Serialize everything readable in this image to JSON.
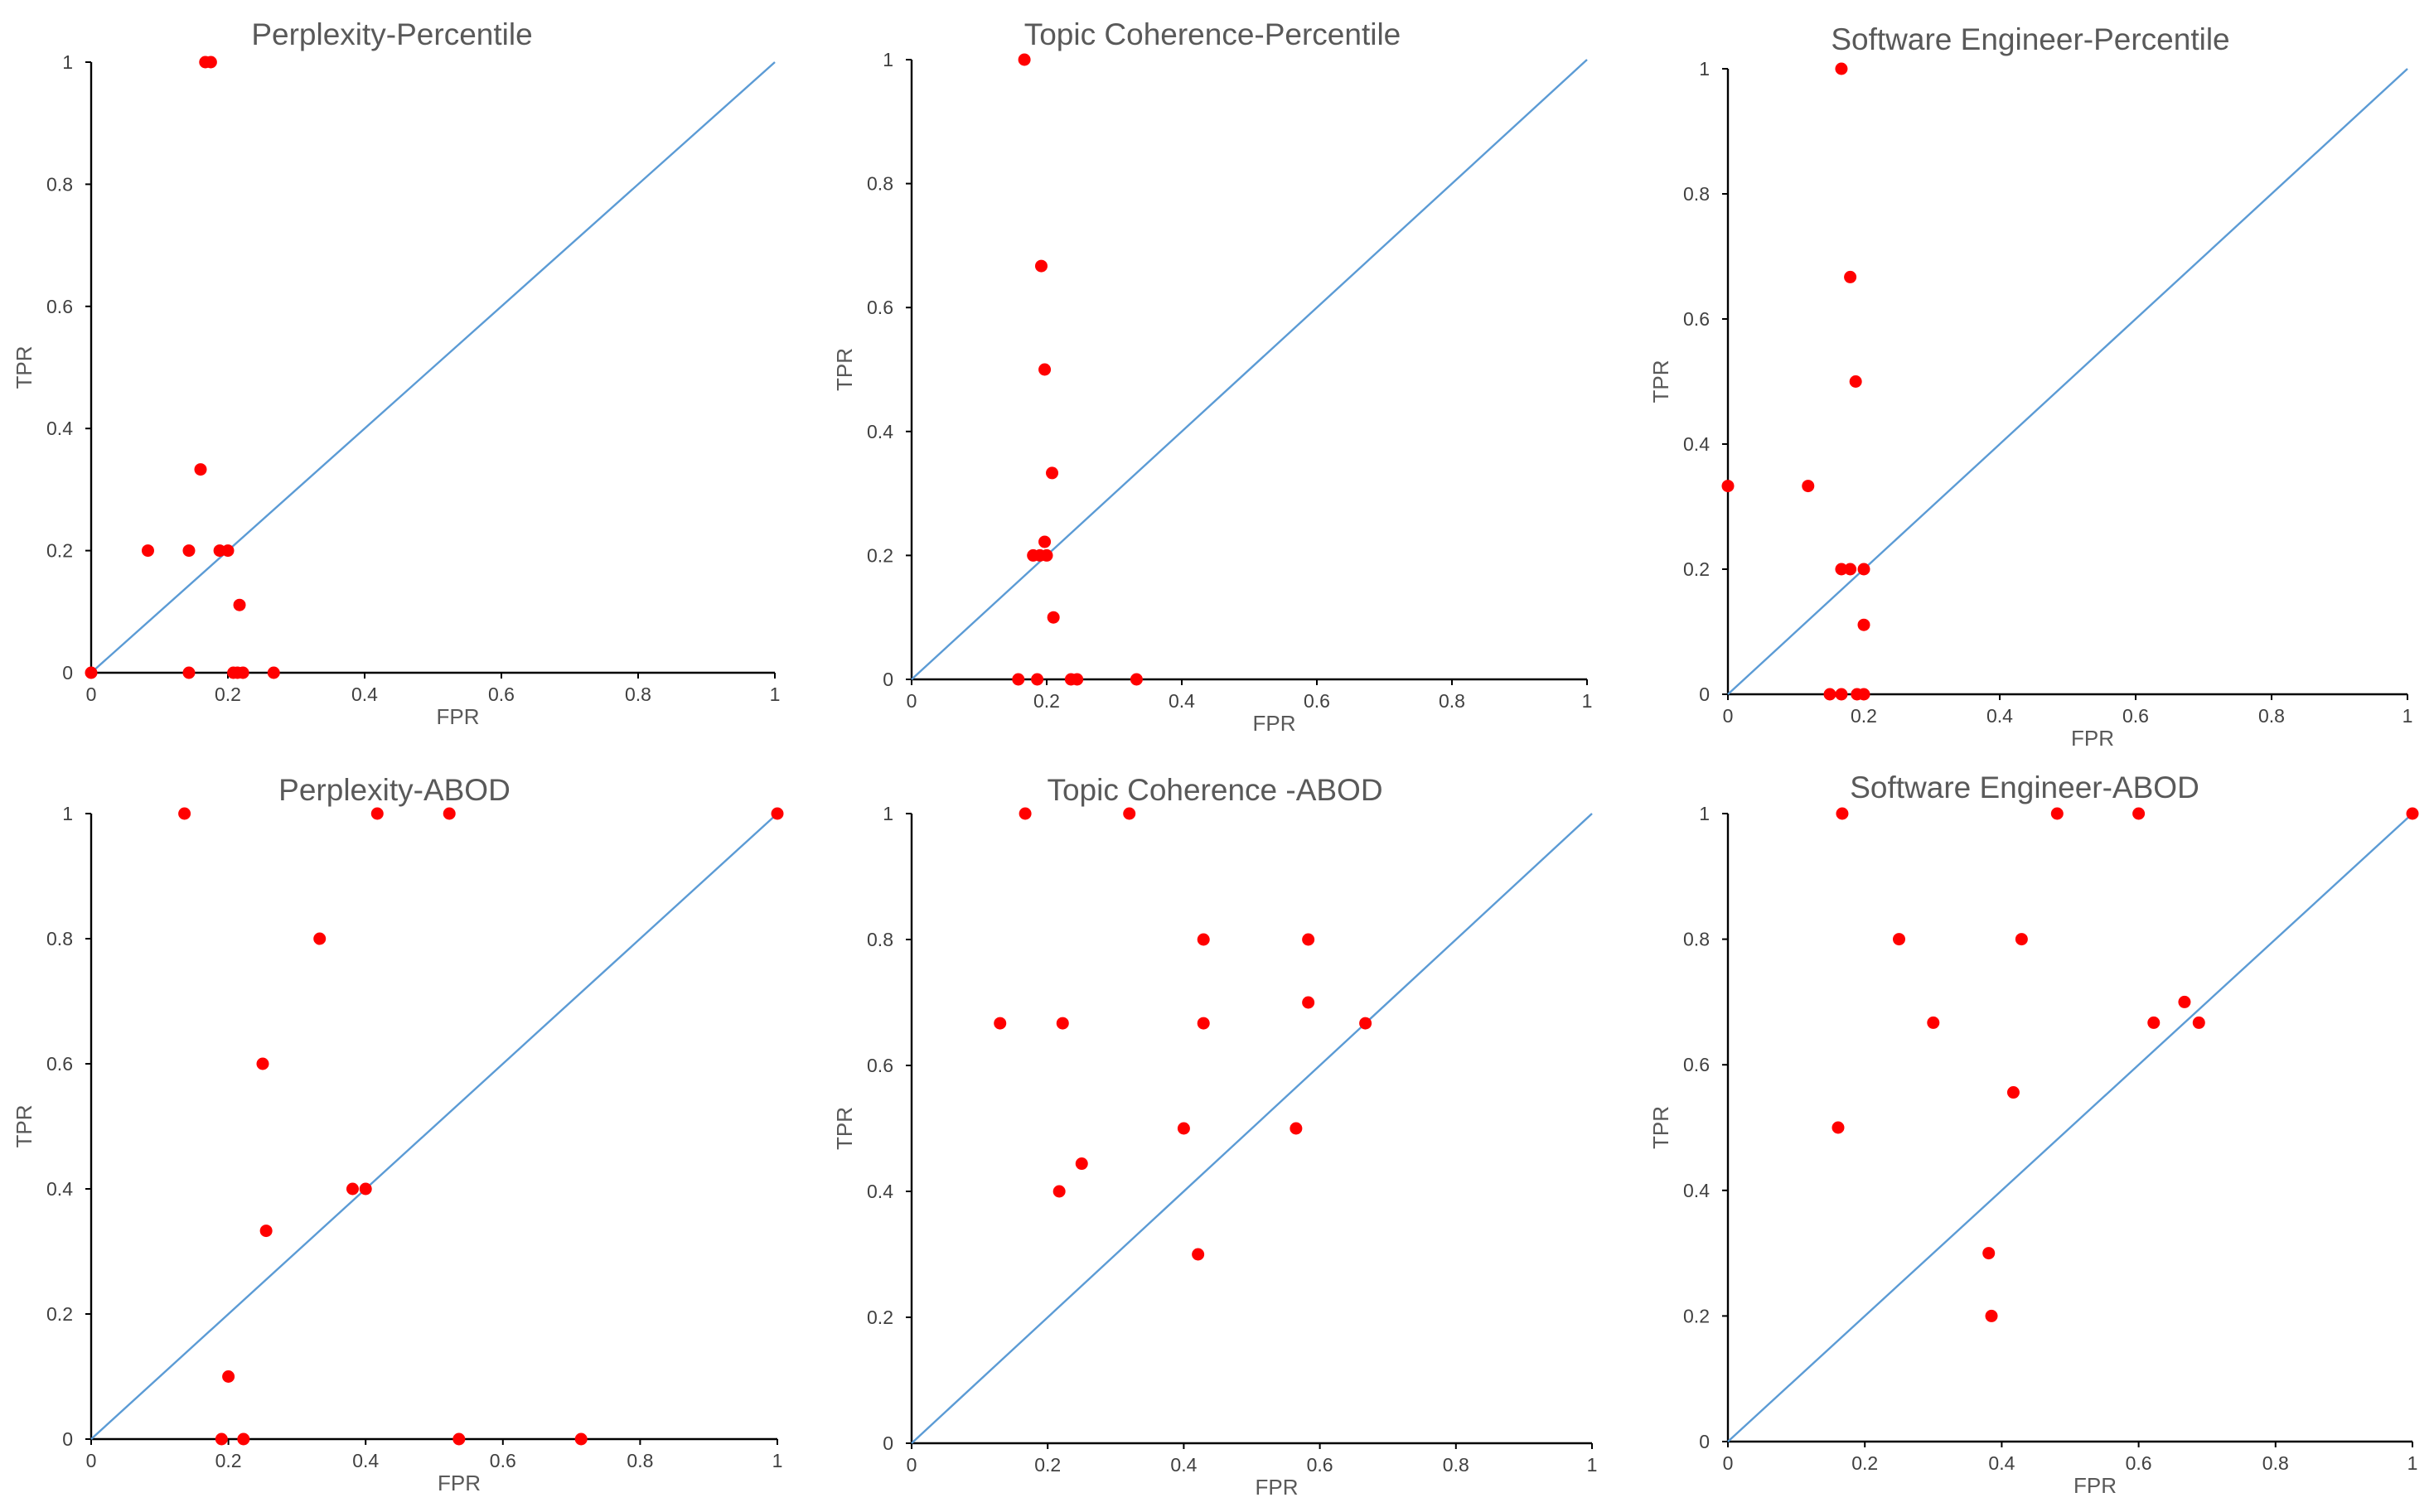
{
  "colors": {
    "points": "#ff0000",
    "diagonal": "#5b9bd5",
    "axes": "#000000",
    "text": "#595959",
    "ticks": "#404040"
  },
  "chart_data": [
    {
      "type": "scatter",
      "title": "Perplexity-Percentile",
      "xlabel": "FPR",
      "ylabel": "TPR",
      "xlim": [
        0,
        1
      ],
      "ylim": [
        0,
        1
      ],
      "xticks": [
        "0",
        "0.2",
        "0.4",
        "0.6",
        "0.8",
        "1"
      ],
      "yticks": [
        "0",
        "0.2",
        "0.4",
        "0.6",
        "0.8",
        "1"
      ],
      "reference_line": "y = x",
      "points": [
        [
          0.0,
          0.0
        ],
        [
          0.083,
          0.2
        ],
        [
          0.143,
          0.2
        ],
        [
          0.143,
          0.0
        ],
        [
          0.16,
          0.333
        ],
        [
          0.167,
          1.0
        ],
        [
          0.175,
          1.0
        ],
        [
          0.188,
          0.2
        ],
        [
          0.2,
          0.2
        ],
        [
          0.208,
          0.0
        ],
        [
          0.214,
          0.0
        ],
        [
          0.217,
          0.111
        ],
        [
          0.222,
          0.0
        ],
        [
          0.267,
          0.0
        ]
      ]
    },
    {
      "type": "scatter",
      "title": "Topic Coherence-Percentile",
      "xlabel": "FPR",
      "ylabel": "TPR",
      "xlim": [
        0,
        1
      ],
      "ylim": [
        0,
        1
      ],
      "xticks": [
        "0",
        "0.2",
        "0.4",
        "0.6",
        "0.8",
        "1"
      ],
      "yticks": [
        "0",
        "0.2",
        "0.4",
        "0.6",
        "0.8",
        "1"
      ],
      "reference_line": "y = x",
      "points": [
        [
          0.167,
          1.0
        ],
        [
          0.192,
          0.667
        ],
        [
          0.197,
          0.5
        ],
        [
          0.208,
          0.333
        ],
        [
          0.197,
          0.222
        ],
        [
          0.18,
          0.2
        ],
        [
          0.19,
          0.2
        ],
        [
          0.2,
          0.2
        ],
        [
          0.21,
          0.1
        ],
        [
          0.158,
          0.0
        ],
        [
          0.186,
          0.0
        ],
        [
          0.236,
          0.0
        ],
        [
          0.245,
          0.0
        ],
        [
          0.333,
          0.0
        ]
      ]
    },
    {
      "type": "scatter",
      "title": "Software Engineer-Percentile",
      "xlabel": "FPR",
      "ylabel": "TPR",
      "xlim": [
        0,
        1
      ],
      "ylim": [
        0,
        1
      ],
      "xticks": [
        "0",
        "0.2",
        "0.4",
        "0.6",
        "0.8",
        "1"
      ],
      "yticks": [
        "0",
        "0.2",
        "0.4",
        "0.6",
        "0.8",
        "1"
      ],
      "reference_line": "y = x",
      "points": [
        [
          0.167,
          1.0
        ],
        [
          0.18,
          0.667
        ],
        [
          0.188,
          0.5
        ],
        [
          0.0,
          0.333
        ],
        [
          0.118,
          0.333
        ],
        [
          0.167,
          0.2
        ],
        [
          0.18,
          0.2
        ],
        [
          0.2,
          0.2
        ],
        [
          0.2,
          0.111
        ],
        [
          0.15,
          0.0
        ],
        [
          0.167,
          0.0
        ],
        [
          0.19,
          0.0
        ],
        [
          0.2,
          0.0
        ]
      ]
    },
    {
      "type": "scatter",
      "title": "Perplexity-ABOD",
      "xlabel": "FPR",
      "ylabel": "TPR",
      "xlim": [
        0,
        1
      ],
      "ylim": [
        0,
        1
      ],
      "xticks": [
        "0",
        "0.2",
        "0.4",
        "0.6",
        "0.8",
        "1"
      ],
      "yticks": [
        "0",
        "0.2",
        "0.4",
        "0.6",
        "0.8",
        "1"
      ],
      "reference_line": "y = x",
      "points": [
        [
          0.136,
          1.0
        ],
        [
          0.417,
          1.0
        ],
        [
          0.522,
          1.0
        ],
        [
          1.0,
          1.0
        ],
        [
          0.333,
          0.8
        ],
        [
          0.25,
          0.6
        ],
        [
          0.381,
          0.4
        ],
        [
          0.4,
          0.4
        ],
        [
          0.255,
          0.333
        ],
        [
          0.2,
          0.1
        ],
        [
          0.19,
          0.0
        ],
        [
          0.222,
          0.0
        ],
        [
          0.536,
          0.0
        ],
        [
          0.714,
          0.0
        ]
      ]
    },
    {
      "type": "scatter",
      "title": "Topic Coherence -ABOD",
      "xlabel": "FPR",
      "ylabel": "TPR",
      "xlim": [
        0,
        1
      ],
      "ylim": [
        0,
        1
      ],
      "xticks": [
        "0",
        "0.2",
        "0.4",
        "0.6",
        "0.8",
        "1"
      ],
      "yticks": [
        "0",
        "0.2",
        "0.4",
        "0.6",
        "0.8",
        "1"
      ],
      "reference_line": "y = x",
      "points": [
        [
          0.167,
          1.0
        ],
        [
          0.32,
          1.0
        ],
        [
          0.429,
          0.8
        ],
        [
          0.583,
          0.8
        ],
        [
          0.583,
          0.7
        ],
        [
          0.13,
          0.667
        ],
        [
          0.222,
          0.667
        ],
        [
          0.429,
          0.667
        ],
        [
          0.667,
          0.667
        ],
        [
          0.4,
          0.5
        ],
        [
          0.565,
          0.5
        ],
        [
          0.25,
          0.444
        ],
        [
          0.217,
          0.4
        ],
        [
          0.421,
          0.3
        ]
      ]
    },
    {
      "type": "scatter",
      "title": "Software Engineer-ABOD",
      "xlabel": "FPR",
      "ylabel": "TPR",
      "xlim": [
        0,
        1
      ],
      "ylim": [
        0,
        1
      ],
      "xticks": [
        "0",
        "0.2",
        "0.4",
        "0.6",
        "0.8",
        "1"
      ],
      "yticks": [
        "0",
        "0.2",
        "0.4",
        "0.6",
        "0.8",
        "1"
      ],
      "reference_line": "y = x",
      "points": [
        [
          0.167,
          1.0
        ],
        [
          0.481,
          1.0
        ],
        [
          0.6,
          1.0
        ],
        [
          1.0,
          1.0
        ],
        [
          0.25,
          0.8
        ],
        [
          0.429,
          0.8
        ],
        [
          0.667,
          0.7
        ],
        [
          0.3,
          0.667
        ],
        [
          0.622,
          0.667
        ],
        [
          0.688,
          0.667
        ],
        [
          0.417,
          0.556
        ],
        [
          0.161,
          0.5
        ],
        [
          0.381,
          0.3
        ],
        [
          0.385,
          0.2
        ]
      ]
    }
  ]
}
